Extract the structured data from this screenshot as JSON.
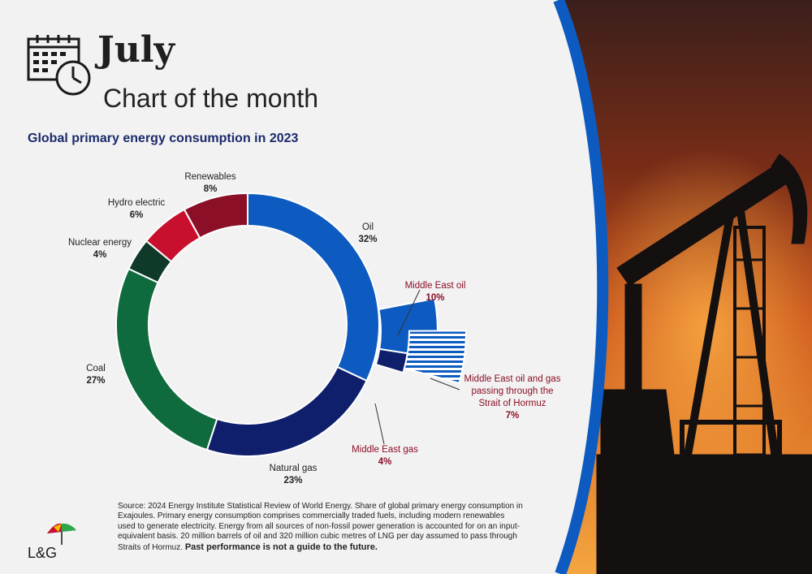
{
  "header": {
    "month": "July",
    "subtitle": "Chart of the month"
  },
  "chart_data": {
    "type": "pie",
    "style": "donut",
    "title": "Global primary energy consumption in 2023",
    "unit": "%",
    "slices": [
      {
        "label": "Oil",
        "value": 32,
        "color": "#0d5bc0"
      },
      {
        "label": "Natural gas",
        "value": 23,
        "color": "#0f1f6b"
      },
      {
        "label": "Coal",
        "value": 27,
        "color": "#0f6b3e"
      },
      {
        "label": "Nuclear energy",
        "value": 4,
        "color": "#0f3a2a"
      },
      {
        "label": "Hydro electric",
        "value": 6,
        "color": "#c8102e"
      },
      {
        "label": "Renewables",
        "value": 8,
        "color": "#8b0f26"
      }
    ],
    "breakout": [
      {
        "label": "Middle East oil",
        "value": 10,
        "color": "#0d5bc0"
      },
      {
        "label": "Middle East gas",
        "value": 4,
        "color": "#0f1f6b"
      },
      {
        "label": "Middle East oil and gas passing through the Strait of Hormuz",
        "value": 7,
        "color": "#0d5bc0",
        "pattern": "hatched"
      }
    ],
    "legend": "none"
  },
  "labels": {
    "oil": {
      "name": "Oil",
      "value": "32%"
    },
    "gas": {
      "name": "Natural gas",
      "value": "23%"
    },
    "coal": {
      "name": "Coal",
      "value": "27%"
    },
    "nuclear": {
      "name": "Nuclear energy",
      "value": "4%"
    },
    "hydro": {
      "name": "Hydro electric",
      "value": "6%"
    },
    "renew": {
      "name": "Renewables",
      "value": "8%"
    },
    "me_oil": {
      "name": "Middle East oil",
      "value": "10%"
    },
    "me_gas": {
      "name": "Middle East gas",
      "value": "4%"
    },
    "hormuz": {
      "line1": "Middle East oil and gas",
      "line2": "passing through the",
      "line3": "Strait of Hormuz",
      "value": "7%"
    }
  },
  "footer": {
    "source": "Source: 2024 Energy Institute Statistical Review of World Energy. Share of global primary energy consumption in Exajoules. Primary energy consumption comprises commercially traded fuels, including modern renewables used to generate electricity. Energy from all sources of non-fossil power generation is accounted for on an input-equivalent basis. 20 million barrels of oil and 320 million cubic metres of LNG per day assumed to pass through Straits of Hormuz.",
    "disclaimer": "Past performance is not a guide to the future.",
    "logo_text": "L&G"
  }
}
